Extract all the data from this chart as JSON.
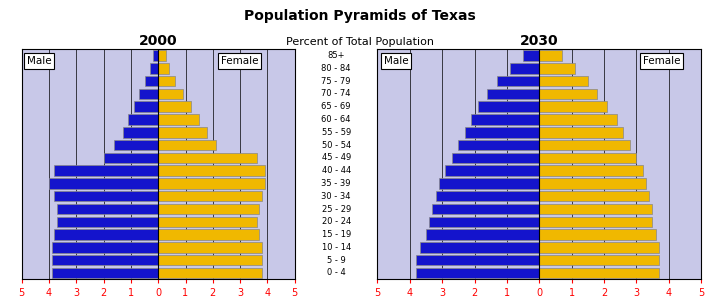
{
  "title": "Population Pyramids of Texas",
  "subtitle": "Percent of Total Population",
  "age_groups": [
    "0 - 4",
    "5 - 9",
    "10 - 14",
    "15 - 19",
    "20 - 24",
    "25 - 29",
    "30 - 34",
    "35 - 39",
    "40 - 44",
    "45 - 49",
    "50 - 54",
    "55 - 59",
    "60 - 64",
    "65 - 69",
    "70 - 74",
    "75 - 79",
    "80 - 84",
    "85+"
  ],
  "year2000": {
    "label": "2000",
    "male": [
      3.9,
      3.9,
      3.9,
      3.8,
      3.7,
      3.7,
      3.8,
      4.0,
      3.8,
      2.0,
      1.6,
      1.3,
      1.1,
      0.9,
      0.7,
      0.5,
      0.3,
      0.2
    ],
    "female": [
      3.8,
      3.8,
      3.8,
      3.7,
      3.6,
      3.7,
      3.8,
      3.9,
      3.9,
      3.6,
      2.1,
      1.8,
      1.5,
      1.2,
      0.9,
      0.6,
      0.4,
      0.3
    ]
  },
  "year2030": {
    "label": "2030",
    "male": [
      3.8,
      3.8,
      3.7,
      3.5,
      3.4,
      3.3,
      3.2,
      3.1,
      2.9,
      2.7,
      2.5,
      2.3,
      2.1,
      1.9,
      1.6,
      1.3,
      0.9,
      0.5
    ],
    "female": [
      3.7,
      3.7,
      3.7,
      3.6,
      3.5,
      3.5,
      3.4,
      3.3,
      3.2,
      3.0,
      2.8,
      2.6,
      2.4,
      2.1,
      1.8,
      1.5,
      1.1,
      0.7
    ]
  },
  "male_color": "#1414cc",
  "female_color": "#f0b800",
  "bg_color": "#c8c8e8",
  "bar_edge_color": "#888888",
  "xlim": 5,
  "center_labels": [
    "0 - 4",
    "5 - 9",
    "10 - 14",
    "15 - 19",
    "20 - 24",
    "25 - 29",
    "30 - 34",
    "35 - 39",
    "40 - 44",
    "45 - 49",
    "50 - 54",
    "55 - 59",
    "60 - 64",
    "65 - 69",
    "70 - 74",
    "75 - 79",
    "80 - 84",
    "85+"
  ]
}
